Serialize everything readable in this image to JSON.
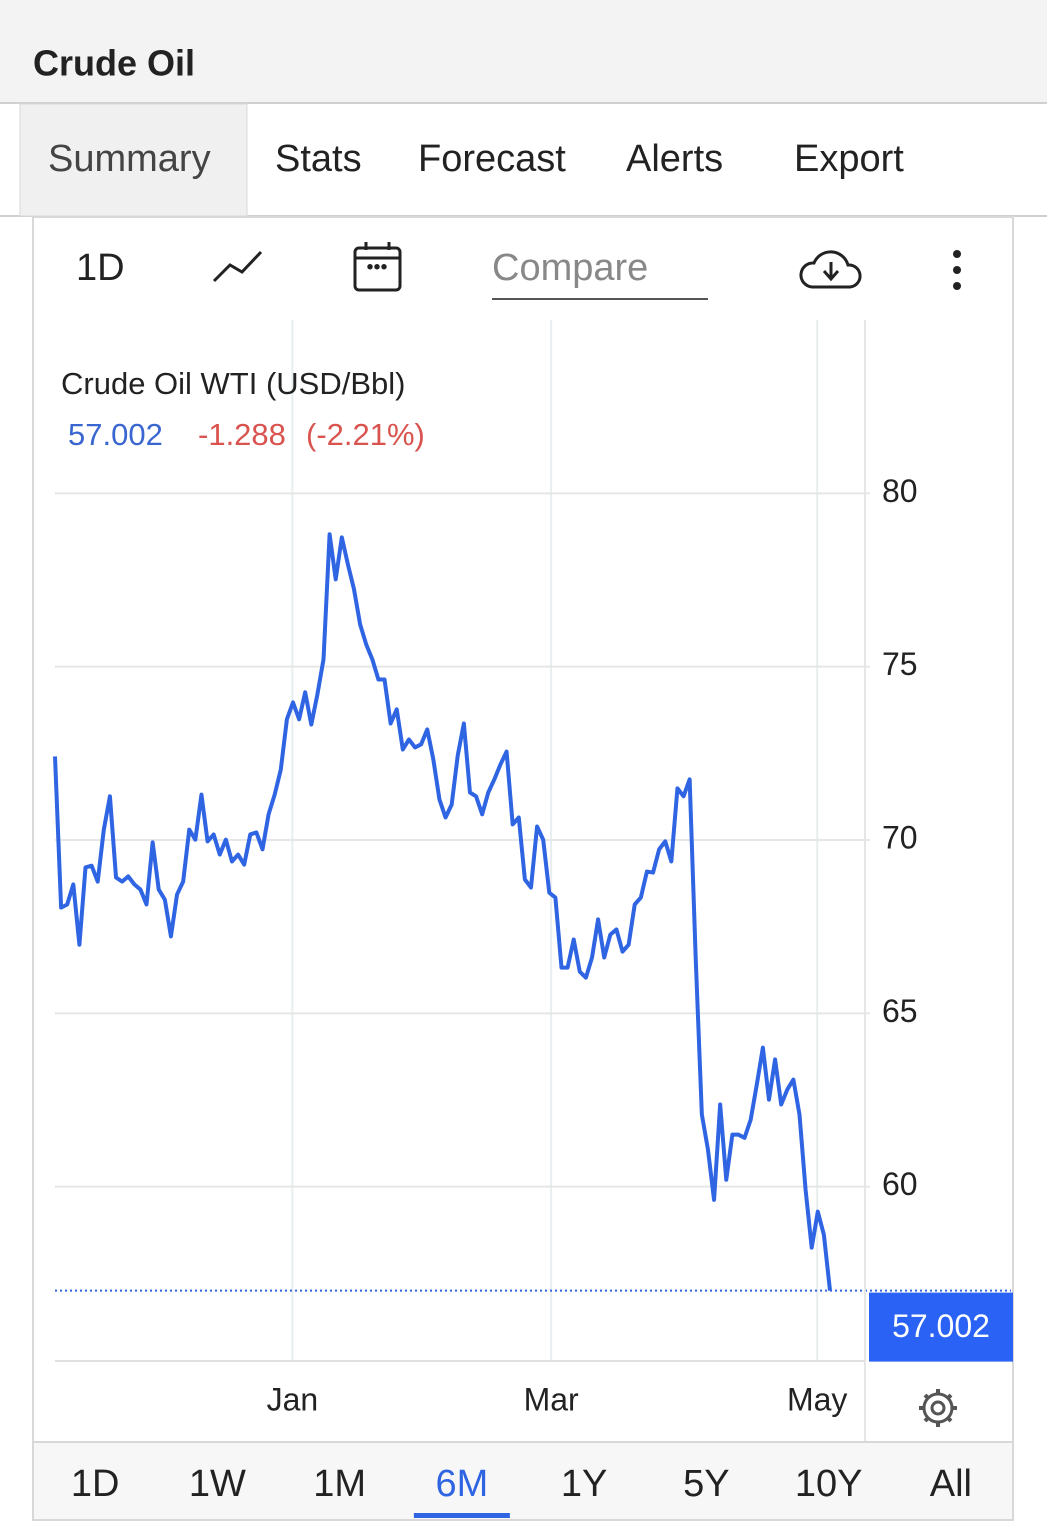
{
  "header": {
    "title": "Crude Oil"
  },
  "tabs": [
    "Summary",
    "Stats",
    "Forecast",
    "Alerts",
    "Export"
  ],
  "active_tab_index": 0,
  "toolbar": {
    "interval": "1D",
    "compare": "Compare"
  },
  "periods": [
    "1D",
    "1W",
    "1M",
    "6M",
    "1Y",
    "5Y",
    "10Y",
    "All"
  ],
  "active_period_index": 3,
  "chart_data": {
    "type": "line",
    "title": "Crude Oil WTI (USD/Bbl)",
    "last_price": 57.002,
    "change": -1.288,
    "change_percent": {
      "value": -2.21,
      "label": "(-2.21%)"
    },
    "color": "#2f64e3",
    "values": [
      72.41,
      68.05,
      68.14,
      68.72,
      66.98,
      69.21,
      69.26,
      68.8,
      70.3,
      71.26,
      68.92,
      68.8,
      68.95,
      68.72,
      68.57,
      68.14,
      69.93,
      68.57,
      68.28,
      67.22,
      68.43,
      68.8,
      70.3,
      70.01,
      71.31,
      69.96,
      70.16,
      69.58,
      70.01,
      69.38,
      69.58,
      69.29,
      70.16,
      70.22,
      69.73,
      70.74,
      71.31,
      72.03,
      73.48,
      73.97,
      73.48,
      74.26,
      73.33,
      74.2,
      75.21,
      78.82,
      77.52,
      78.73,
      77.95,
      77.23,
      76.22,
      75.64,
      75.21,
      74.63,
      74.63,
      73.36,
      73.77,
      72.61,
      72.9,
      72.67,
      72.76,
      73.19,
      72.32,
      71.17,
      70.65,
      71.02,
      72.44,
      73.36,
      71.37,
      71.26,
      70.74,
      71.37,
      71.75,
      72.18,
      72.55,
      70.45,
      70.65,
      68.86,
      68.63,
      70.39,
      70.01,
      68.48,
      68.34,
      66.32,
      66.32,
      67.13,
      66.2,
      66.03,
      66.61,
      67.71,
      66.61,
      67.27,
      67.42,
      66.78,
      66.98,
      68.14,
      68.34,
      69.09,
      69.06,
      69.73,
      69.96,
      69.38,
      71.49,
      71.26,
      71.75,
      66.55,
      62.08,
      61.07,
      59.62,
      62.37,
      60.2,
      61.5,
      61.5,
      61.41,
      61.93,
      62.94,
      64.01,
      62.51,
      63.67,
      62.37,
      62.8,
      63.09,
      62.08,
      59.91,
      58.24,
      59.28,
      58.61,
      57.002
    ],
    "xlim": [
      0,
      127
    ],
    "xticks": [
      {
        "value": 38.9,
        "label": "Jan"
      },
      {
        "value": 81.3,
        "label": "Mar"
      },
      {
        "value": 124.9,
        "label": "May"
      }
    ],
    "ylim": [
      55,
      85
    ],
    "yticks": [
      60,
      65,
      70,
      75,
      80
    ],
    "grid": true
  }
}
